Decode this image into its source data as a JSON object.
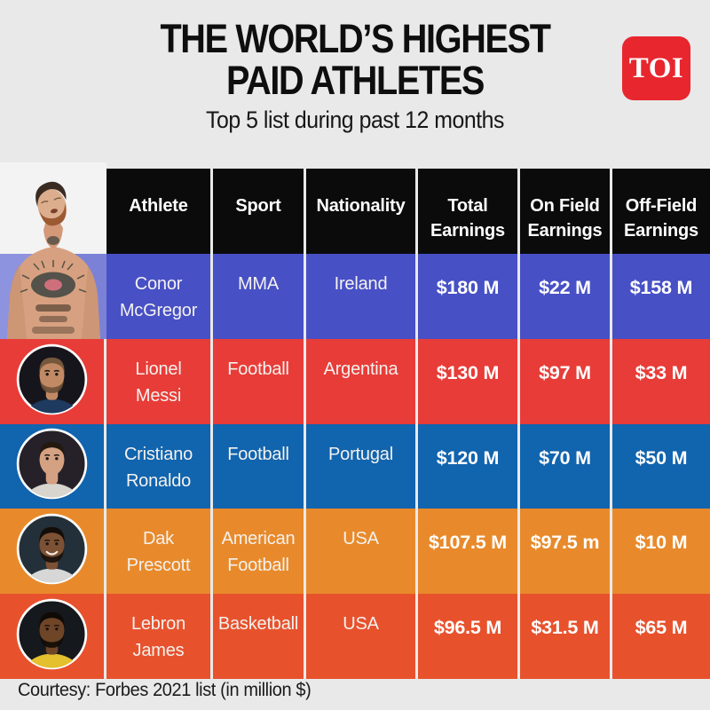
{
  "header": {
    "title_line1": "THE WORLD’S HIGHEST",
    "title_line2": "PAID ATHLETES",
    "subtitle": "Top 5 list during past 12 months",
    "logo_text": "TOI"
  },
  "colors": {
    "page_bg": "#e9e9e9",
    "logo_red": "#e8262e",
    "header_cell_bg": "#0b0b0b",
    "row_mcgregor": "#4750c5",
    "row_messi": "#e83c38",
    "row_ronaldo": "#1164ae",
    "row_prescott": "#e88a2b",
    "row_james": "#e7522d"
  },
  "table": {
    "columns": [
      "Athlete",
      "Sport",
      "Nationality",
      "Total Earnings",
      "On Field Earnings",
      "Off-Field Earnings"
    ],
    "rows": [
      {
        "athlete": "Conor McGregor",
        "sport": "MMA",
        "nationality": "Ireland",
        "total_earnings": "$180 M",
        "on_field_earnings": "$22 M",
        "off_field_earnings": "$158 M",
        "row_color": "#4750c5"
      },
      {
        "athlete": "Lionel Messi",
        "sport": "Football",
        "nationality": "Argentina",
        "total_earnings": "$130 M",
        "on_field_earnings": "$97 M",
        "off_field_earnings": "$33 M",
        "row_color": "#e83c38"
      },
      {
        "athlete": "Cristiano Ronaldo",
        "sport": "Football",
        "nationality": "Portugal",
        "total_earnings": "$120 M",
        "on_field_earnings": "$70 M",
        "off_field_earnings": "$50 M",
        "row_color": "#1164ae"
      },
      {
        "athlete": "Dak Prescott",
        "sport": "American Football",
        "nationality": "USA",
        "total_earnings": "$107.5 M",
        "on_field_earnings": "$97.5 m",
        "off_field_earnings": "$10 M",
        "row_color": "#e88a2b"
      },
      {
        "athlete": "Lebron James",
        "sport": "Basketball",
        "nationality": "USA",
        "total_earnings": "$96.5 M",
        "on_field_earnings": "$31.5 M",
        "off_field_earnings": "$65 M",
        "row_color": "#e7522d"
      }
    ]
  },
  "footer": {
    "text": "Courtesy: Forbes 2021 list (in million $)"
  },
  "chart_data": {
    "type": "table",
    "title": "THE WORLD’S HIGHEST PAID ATHLETES",
    "subtitle": "Top 5 list during past 12 months",
    "columns": [
      "Athlete",
      "Sport",
      "Nationality",
      "Total Earnings",
      "On Field Earnings",
      "Off-Field Earnings"
    ],
    "rows": [
      [
        "Conor McGregor",
        "MMA",
        "Ireland",
        "$180 M",
        "$22 M",
        "$158 M"
      ],
      [
        "Lionel Messi",
        "Football",
        "Argentina",
        "$130 M",
        "$97 M",
        "$33 M"
      ],
      [
        "Cristiano Ronaldo",
        "Football",
        "Portugal",
        "$120 M",
        "$70 M",
        "$50 M"
      ],
      [
        "Dak Prescott",
        "American Football",
        "USA",
        "$107.5 M",
        "$97.5 m",
        "$10 M"
      ],
      [
        "Lebron James",
        "Basketball",
        "USA",
        "$96.5 M",
        "$31.5 M",
        "$65 M"
      ]
    ],
    "values_numeric_million_usd": {
      "total": [
        180,
        130,
        120,
        107.5,
        96.5
      ],
      "on_field": [
        22,
        97,
        70,
        97.5,
        31.5
      ],
      "off_field": [
        158,
        33,
        50,
        10,
        65
      ]
    },
    "note": "Courtesy: Forbes 2021 list (in million $)"
  }
}
